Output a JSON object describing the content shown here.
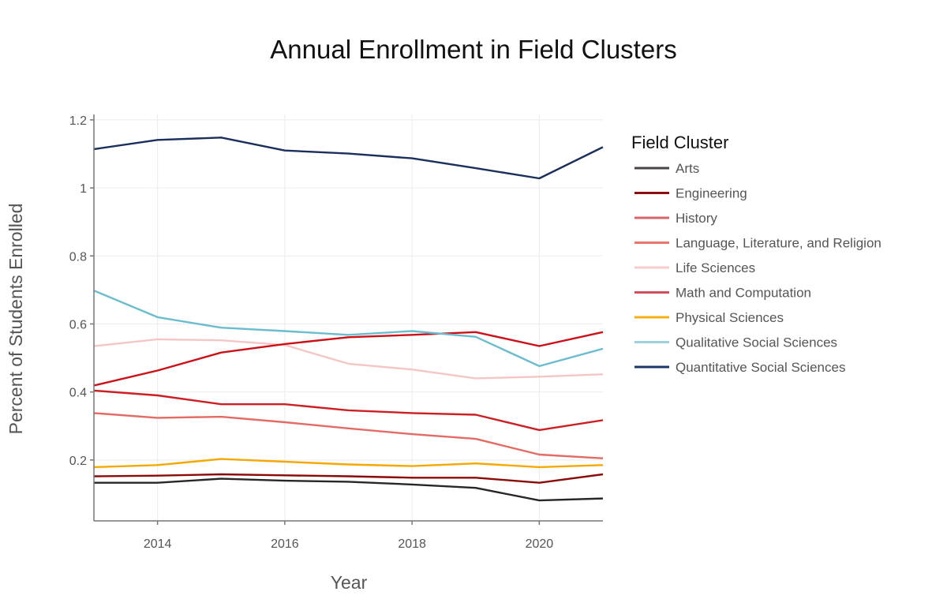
{
  "chart_data": {
    "type": "line",
    "title": "Annual Enrollment in Field Clusters",
    "xlabel": "Year",
    "ylabel": "Percent of Students Enrolled",
    "x": [
      2013,
      2014,
      2015,
      2016,
      2017,
      2018,
      2019,
      2020,
      2021
    ],
    "xlim": [
      2013,
      2021
    ],
    "ylim": [
      0.021,
      1.216
    ],
    "x_ticks": [
      2014,
      2016,
      2018,
      2020
    ],
    "x_tick_labels": [
      "2014",
      "2016",
      "2018",
      "2020"
    ],
    "y_ticks": [
      0.2,
      0.4,
      0.6,
      0.8,
      1.0,
      1.2
    ],
    "y_tick_labels": [
      "0.2",
      "0.4",
      "0.6",
      "0.8",
      "1",
      "1.2"
    ],
    "grid": true,
    "legend": {
      "title": "Field Cluster",
      "placement": "right"
    },
    "series": [
      {
        "name": "Arts",
        "color": "#2b2626",
        "legend_color": "#4a4444",
        "values": [
          0.133,
          0.133,
          0.145,
          0.139,
          0.136,
          0.128,
          0.118,
          0.081,
          0.087
        ]
      },
      {
        "name": "Engineering",
        "color": "#8b0a0a",
        "legend_color": "#8b1010",
        "values": [
          0.152,
          0.154,
          0.158,
          0.155,
          0.152,
          0.148,
          0.148,
          0.133,
          0.158
        ]
      },
      {
        "name": "History",
        "color": "#cc1f24",
        "legend_color": "#d7646a",
        "values": [
          0.404,
          0.39,
          0.364,
          0.364,
          0.346,
          0.338,
          0.333,
          0.288,
          0.317
        ]
      },
      {
        "name": "Language, Literature, and Religion",
        "color": "#e46a64",
        "legend_color": "#e8766a",
        "values": [
          0.338,
          0.324,
          0.327,
          0.311,
          0.293,
          0.276,
          0.262,
          0.216,
          0.205
        ]
      },
      {
        "name": "Life Sciences",
        "color": "#f5c6c6",
        "legend_color": "#f6cccc",
        "values": [
          0.535,
          0.555,
          0.552,
          0.538,
          0.483,
          0.466,
          0.44,
          0.445,
          0.452
        ]
      },
      {
        "name": "Math and Computation",
        "color": "#cc1018",
        "legend_color": "#d2505a",
        "values": [
          0.419,
          0.463,
          0.516,
          0.541,
          0.561,
          0.568,
          0.576,
          0.535,
          0.576
        ]
      },
      {
        "name": "Physical Sciences",
        "color": "#f5a800",
        "legend_color": "#f5b014",
        "values": [
          0.179,
          0.185,
          0.203,
          0.195,
          0.187,
          0.182,
          0.19,
          0.179,
          0.185
        ]
      },
      {
        "name": "Qualitative Social Sciences",
        "color": "#6cbccf",
        "legend_color": "#9cd2de",
        "values": [
          0.698,
          0.62,
          0.589,
          0.579,
          0.568,
          0.579,
          0.562,
          0.476,
          0.527
        ]
      },
      {
        "name": "Quantitative Social Sciences",
        "color": "#1a2f5c",
        "legend_color": "#1c3566",
        "values": [
          1.114,
          1.141,
          1.148,
          1.11,
          1.101,
          1.087,
          1.058,
          1.028,
          1.12
        ]
      }
    ]
  }
}
